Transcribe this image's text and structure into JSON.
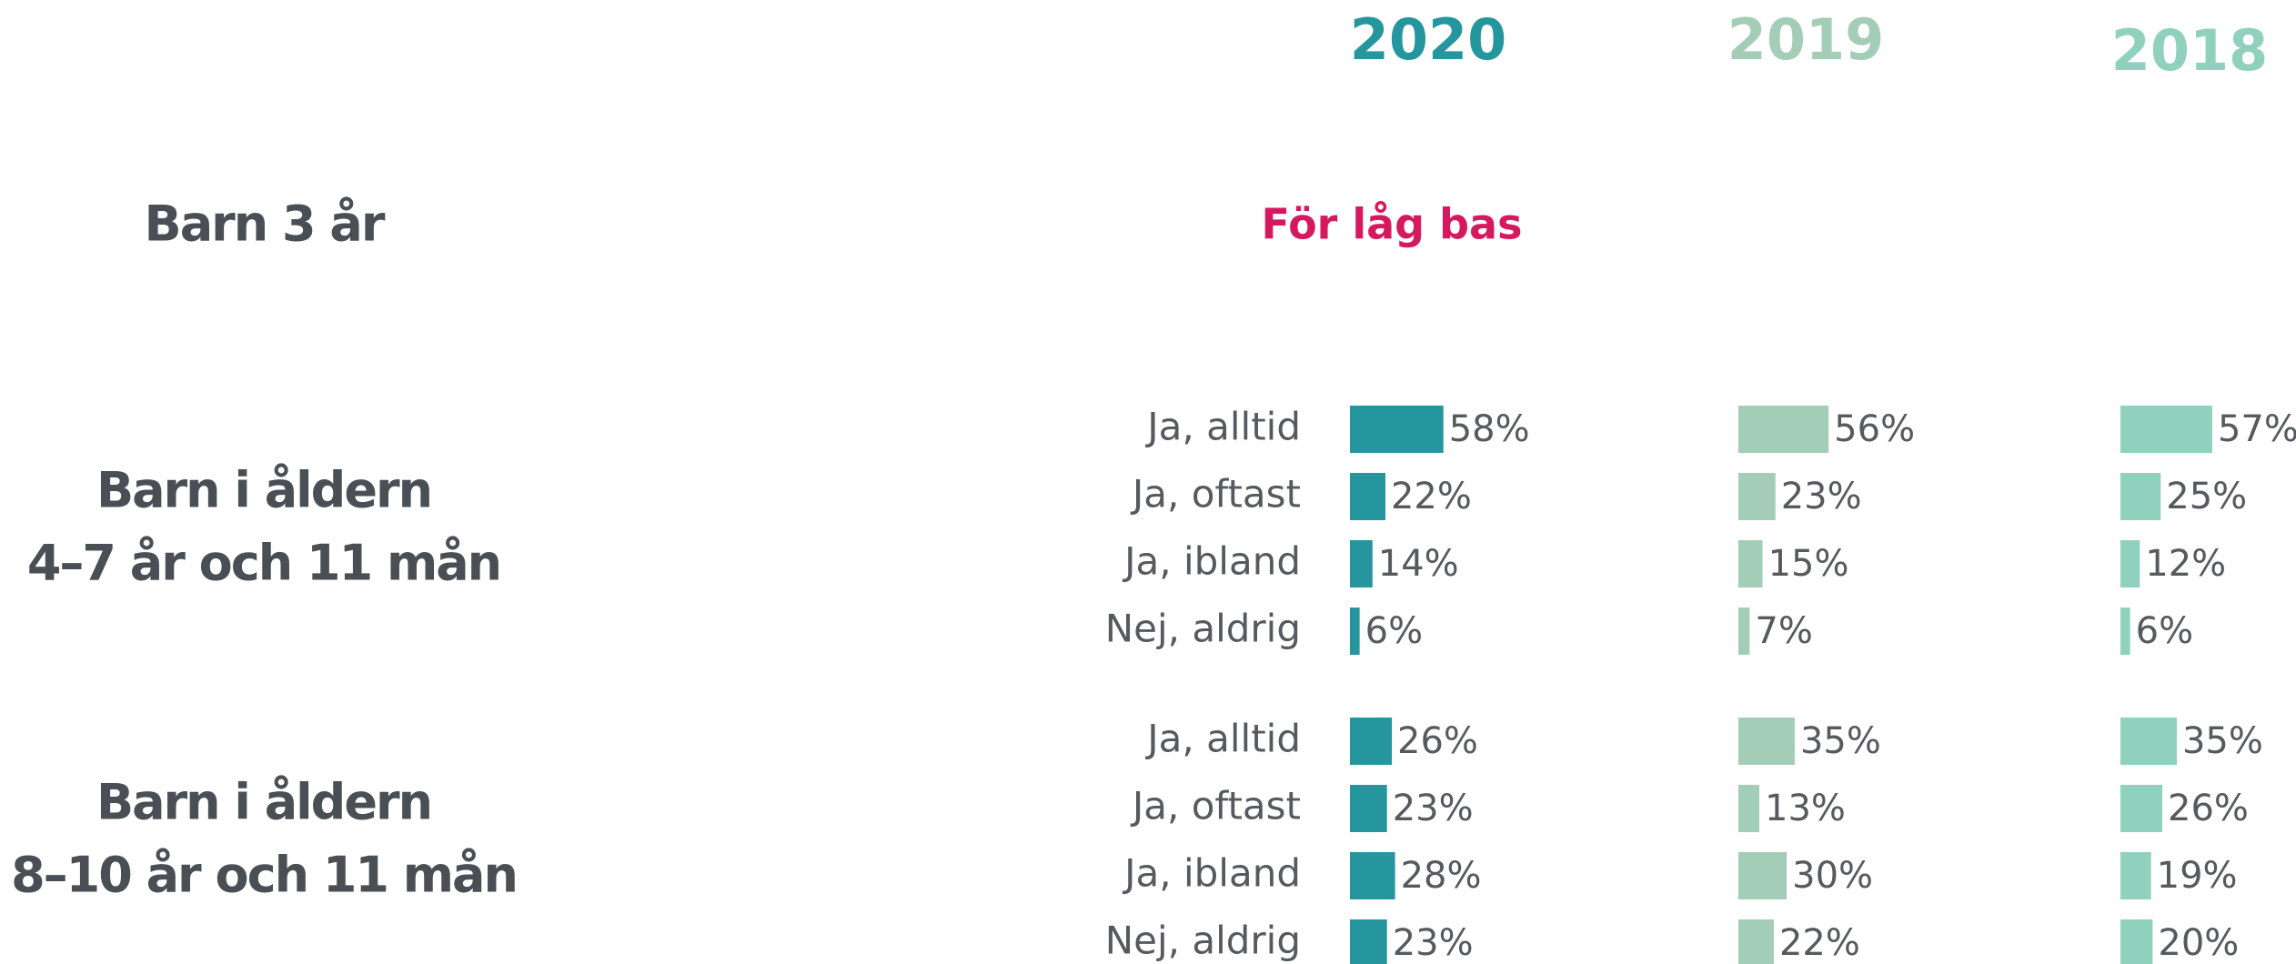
{
  "chart_data": {
    "type": "bar",
    "years": [
      {
        "name": "2020",
        "color": "#25959e"
      },
      {
        "name": "2019",
        "color": "#a3cdb7"
      },
      {
        "name": "2018",
        "color": "#8fd1bc"
      }
    ],
    "groups": [
      {
        "label": [
          "Barn 3 år"
        ],
        "note": "För låg bas"
      },
      {
        "label": [
          "Barn i åldern",
          "4–7 år och 11 mån"
        ],
        "categories": [
          "Ja, alltid",
          "Ja, oftast",
          "Ja, ibland",
          "Nej, aldrig"
        ],
        "series": [
          {
            "name": "2020",
            "values": [
              58,
              22,
              14,
              6
            ],
            "value_labels": [
              "58%",
              "22%",
              "14%",
              "6%"
            ]
          },
          {
            "name": "2019",
            "values": [
              56,
              23,
              15,
              7
            ],
            "value_labels": [
              "56%",
              "23%",
              "15%",
              "7%"
            ]
          },
          {
            "name": "2018",
            "values": [
              57,
              25,
              12,
              6
            ],
            "value_labels": [
              "57%",
              "25%",
              "12%",
              "6%"
            ]
          }
        ]
      },
      {
        "label": [
          "Barn i åldern",
          "8–10 år och 11 mån"
        ],
        "categories": [
          "Ja, alltid",
          "Ja, oftast",
          "Ja, ibland",
          "Nej, aldrig"
        ],
        "series": [
          {
            "name": "2020",
            "values": [
              26,
              23,
              28,
              23
            ],
            "value_labels": [
              "26%",
              "23%",
              "28%",
              "23%"
            ]
          },
          {
            "name": "2019",
            "values": [
              35,
              13,
              30,
              22
            ],
            "value_labels": [
              "35%",
              "13%",
              "30%",
              "22%"
            ]
          },
          {
            "name": "2018",
            "values": [
              35,
              26,
              19,
              20
            ],
            "value_labels": [
              "35%",
              "26%",
              "19%",
              "20%"
            ]
          }
        ]
      }
    ]
  }
}
